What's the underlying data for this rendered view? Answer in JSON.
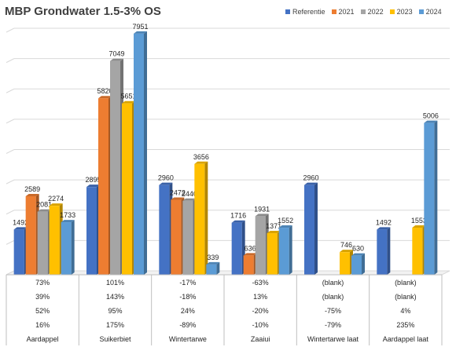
{
  "chart_data": {
    "type": "bar",
    "title": "MBP Grondwater  1.5-3% OS",
    "categories": [
      "Aardappel",
      "Suikerbiet",
      "Wintertarwe",
      "Zaaiui",
      "Wintertarwe laat",
      "Aardappel laat"
    ],
    "series": [
      {
        "name": "Referentie",
        "color": "#4472C4",
        "values": [
          1492,
          2895,
          2960,
          1716,
          2960,
          1492
        ]
      },
      {
        "name": "2021",
        "color": "#ED7D31",
        "values": [
          2589,
          5820,
          2472,
          636,
          null,
          null
        ]
      },
      {
        "name": "2022",
        "color": "#A5A5A5",
        "values": [
          2081,
          7049,
          2440,
          1931,
          null,
          null
        ]
      },
      {
        "name": "2023",
        "color": "#FFC000",
        "values": [
          2274,
          5651,
          3656,
          1371,
          746,
          1553
        ]
      },
      {
        "name": "2024",
        "color": "#5B9BD5",
        "values": [
          1733,
          7951,
          339,
          1552,
          630,
          5006
        ]
      }
    ],
    "data_labels": [
      [
        "1492",
        "2589",
        "2081",
        "2274",
        "1733"
      ],
      [
        "2895",
        "5820",
        "7049",
        "5651",
        "7951"
      ],
      [
        "2960",
        "2472",
        "2440",
        "3656",
        "339"
      ],
      [
        "1716",
        "636",
        "1931",
        "1371",
        "1552"
      ],
      [
        "2960",
        "",
        "",
        "746",
        "630"
      ],
      [
        "1492",
        "",
        "",
        "1553",
        "5006"
      ]
    ],
    "ylim": [
      0,
      8000
    ],
    "grid": true,
    "legend": "top-right",
    "table_rows": [
      [
        "73%",
        "101%",
        "-17%",
        "-63%",
        "(blank)",
        "(blank)"
      ],
      [
        "39%",
        "143%",
        "-18%",
        "13%",
        "(blank)",
        "(blank)"
      ],
      [
        "52%",
        "95%",
        "24%",
        "-20%",
        "-75%",
        "4%"
      ],
      [
        "16%",
        "175%",
        "-89%",
        "-10%",
        "-79%",
        "235%"
      ]
    ]
  }
}
